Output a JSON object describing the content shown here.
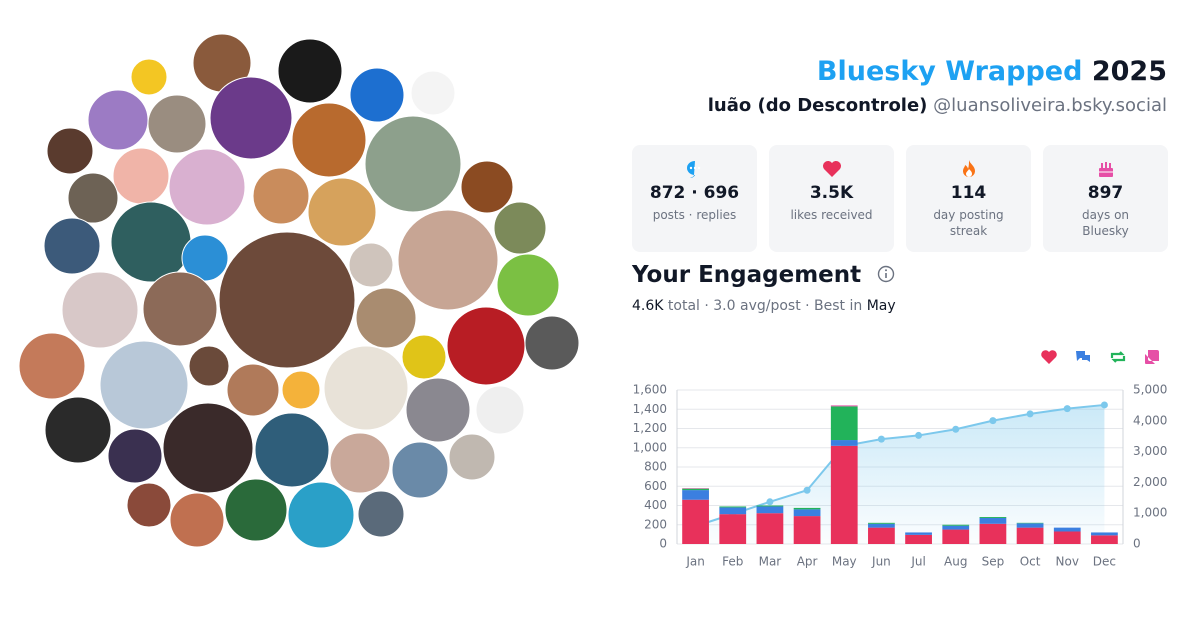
{
  "header": {
    "brand": "Bluesky Wrapped",
    "year": "2025",
    "display_name": "luão (do Descontrole)",
    "handle": "@luansoliveira.bsky.social"
  },
  "stats": [
    {
      "value": "872 · 696",
      "label": "posts · replies"
    },
    {
      "value": "3.5K",
      "label": "likes received"
    },
    {
      "value": "114",
      "label": "day posting streak"
    },
    {
      "value": "897",
      "label": "days on Bluesky"
    }
  ],
  "engagement": {
    "title": "Your Engagement",
    "total": "4.6K",
    "summary": "total · 3.0 avg/post · Best in",
    "best_month": "May"
  },
  "chart_data": {
    "type": "bar",
    "categories": [
      "Jan",
      "Feb",
      "Mar",
      "Apr",
      "May",
      "Jun",
      "Jul",
      "Aug",
      "Sep",
      "Oct",
      "Nov",
      "Dec"
    ],
    "series": [
      {
        "color": "#e8315b",
        "values": [
          460,
          310,
          320,
          290,
          1020,
          170,
          95,
          150,
          210,
          170,
          130,
          90
        ]
      },
      {
        "color": "#3b7fe0",
        "values": [
          100,
          70,
          70,
          70,
          60,
          40,
          25,
          40,
          60,
          45,
          40,
          30
        ]
      },
      {
        "color": "#22b35a",
        "values": [
          15,
          10,
          10,
          15,
          350,
          10,
          0,
          10,
          10,
          5,
          0,
          0
        ]
      },
      {
        "color": "#e64fa6",
        "values": [
          5,
          0,
          0,
          0,
          10,
          0,
          0,
          0,
          0,
          0,
          0,
          0
        ]
      },
      {
        "type": "line",
        "axis": "y2",
        "color": "#7cc8ec",
        "values": [
          580,
          970,
          1370,
          1745,
          3185,
          3405,
          3525,
          3725,
          4005,
          4225,
          4395,
          4515
        ]
      }
    ],
    "ylim": [
      0,
      1600
    ],
    "yticks": [
      0,
      200,
      400,
      600,
      800,
      {
        "value": 1000,
        "label": "1,000"
      },
      {
        "value": 1200,
        "label": "1,200"
      },
      {
        "value": 1400,
        "label": "1,400"
      },
      {
        "value": 1600,
        "label": "1,600"
      }
    ],
    "y2lim": [
      0,
      5000
    ],
    "y2ticks": [
      0,
      {
        "value": 1000,
        "label": "1,000"
      },
      {
        "value": 2000,
        "label": "2,000"
      },
      {
        "value": 3000,
        "label": "3,000"
      },
      {
        "value": 4000,
        "label": "4,000"
      },
      {
        "value": 5000,
        "label": "5,000"
      }
    ],
    "grid": true
  }
}
